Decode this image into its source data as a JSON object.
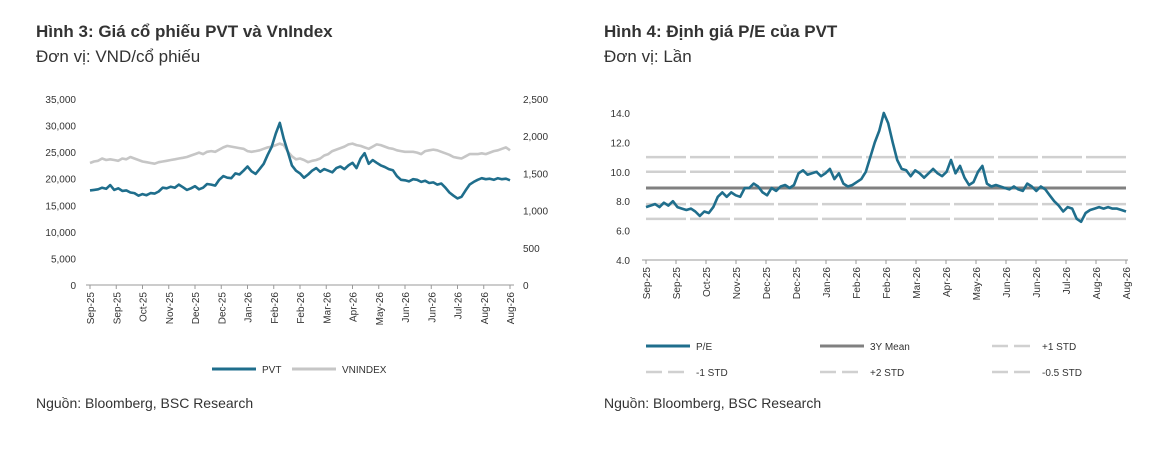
{
  "chart_data": [
    {
      "type": "line",
      "title": "Hình 3: Giá cổ phiếu PVT và VnIndex",
      "subtitle": "Đơn vị: VND/cổ phiếu",
      "source": "Nguồn: Bloomberg, BSC Research",
      "x_tick_labels": [
        "Sep-25",
        "Sep-25",
        "Oct-25",
        "Nov-25",
        "Dec-25",
        "Dec-25",
        "Jan-26",
        "Feb-26",
        "Feb-26",
        "Mar-26",
        "Apr-26",
        "May-26",
        "Jun-26",
        "Jun-26",
        "Jul-26",
        "Aug-26",
        "Aug-26"
      ],
      "y_left_ticks": [
        "35,000",
        "30,000",
        "25,000",
        "20,000",
        "15,000",
        "10,000",
        "5,000",
        "0"
      ],
      "y_right_ticks": [
        "2,500",
        "2,000",
        "1,500",
        "1,000",
        "500",
        "0"
      ],
      "ylim_left": [
        0,
        35000
      ],
      "ylim_right": [
        0,
        2500
      ],
      "legend_position": "bottom",
      "grid": false,
      "series": [
        {
          "name": "PVT",
          "axis": "left",
          "color": "#1f6e8c",
          "values": [
            17800,
            17900,
            18000,
            18300,
            18100,
            18800,
            17900,
            18200,
            17700,
            17800,
            17400,
            17300,
            16800,
            17100,
            16900,
            17300,
            17200,
            17600,
            18300,
            18200,
            18500,
            18300,
            18900,
            18400,
            17900,
            18200,
            18600,
            18000,
            18300,
            19000,
            18900,
            18700,
            19800,
            20500,
            20200,
            20100,
            21000,
            20800,
            21500,
            22300,
            21400,
            20900,
            21800,
            22800,
            24500,
            26000,
            28500,
            30500,
            27500,
            25000,
            22500,
            21500,
            21000,
            20200,
            20800,
            21500,
            22000,
            21300,
            21800,
            21500,
            21200,
            22000,
            22300,
            21800,
            22500,
            23000,
            22000,
            23800,
            24800,
            22800,
            23500,
            23000,
            22500,
            22200,
            21800,
            21600,
            20500,
            19800,
            19700,
            19500,
            19900,
            19800,
            19400,
            19600,
            19200,
            19300,
            18900,
            19100,
            18300,
            17400,
            16800,
            16300,
            16600,
            17800,
            18900,
            19400,
            19800,
            20100,
            19900,
            20000,
            19800,
            20100,
            19900,
            20000,
            19700
          ]
        },
        {
          "name": "VNINDEX",
          "axis": "right",
          "color": "#c6c6c6",
          "values": [
            1640,
            1660,
            1670,
            1700,
            1680,
            1690,
            1680,
            1670,
            1700,
            1690,
            1720,
            1700,
            1680,
            1660,
            1650,
            1640,
            1630,
            1650,
            1660,
            1670,
            1680,
            1690,
            1700,
            1710,
            1720,
            1740,
            1760,
            1780,
            1760,
            1790,
            1800,
            1790,
            1820,
            1850,
            1870,
            1860,
            1850,
            1840,
            1830,
            1800,
            1790,
            1800,
            1810,
            1830,
            1850,
            1860,
            1880,
            1900,
            1880,
            1790,
            1730,
            1690,
            1700,
            1680,
            1650,
            1670,
            1680,
            1700,
            1740,
            1760,
            1800,
            1820,
            1840,
            1860,
            1890,
            1900,
            1880,
            1870,
            1850,
            1830,
            1860,
            1890,
            1880,
            1860,
            1840,
            1830,
            1810,
            1800,
            1790,
            1790,
            1790,
            1780,
            1760,
            1800,
            1810,
            1820,
            1810,
            1790,
            1770,
            1750,
            1720,
            1710,
            1700,
            1730,
            1760,
            1760,
            1760,
            1770,
            1760,
            1780,
            1800,
            1810,
            1830,
            1850,
            1810
          ]
        }
      ]
    },
    {
      "type": "line",
      "title": "Hình 4: Định giá P/E của PVT",
      "subtitle": "Đơn vị: Lần",
      "source": "Nguồn: Bloomberg, BSC Research",
      "x_tick_labels": [
        "Sep-25",
        "Sep-25",
        "Oct-25",
        "Nov-25",
        "Dec-25",
        "Dec-25",
        "Jan-26",
        "Feb-26",
        "Feb-26",
        "Mar-26",
        "Apr-26",
        "May-26",
        "Jun-26",
        "Jun-26",
        "Jul-26",
        "Aug-26",
        "Aug-26"
      ],
      "y_ticks": [
        "14.0",
        "12.0",
        "10.0",
        "8.0",
        "6.0",
        "4.0"
      ],
      "ylim": [
        4,
        14
      ],
      "legend_position": "bottom",
      "grid": false,
      "reference_lines": [
        {
          "name": "3Y Mean",
          "value": 8.9,
          "color": "#808080",
          "style": "solid"
        },
        {
          "name": "+1 STD",
          "value": 10.0,
          "color": "#d0d0d0",
          "style": "dash"
        },
        {
          "name": "-1 STD",
          "value": 7.8,
          "color": "#d0d0d0",
          "style": "dash"
        },
        {
          "name": "+2 STD",
          "value": 11.0,
          "color": "#d0d0d0",
          "style": "dash"
        },
        {
          "name": "-0.5 STD",
          "value": 6.8,
          "color": "#d0d0d0",
          "style": "dash"
        }
      ],
      "series": [
        {
          "name": "P/E",
          "color": "#1f6e8c",
          "values": [
            7.6,
            7.7,
            7.8,
            7.6,
            7.9,
            7.7,
            8.0,
            7.6,
            7.5,
            7.4,
            7.5,
            7.3,
            7.0,
            7.3,
            7.2,
            7.6,
            8.3,
            8.6,
            8.3,
            8.6,
            8.4,
            8.3,
            8.9,
            8.9,
            9.2,
            9.0,
            8.6,
            8.4,
            8.9,
            8.7,
            9.0,
            9.1,
            8.9,
            9.1,
            9.9,
            10.1,
            9.8,
            9.9,
            10.0,
            9.7,
            9.9,
            10.2,
            9.5,
            9.9,
            9.2,
            9.0,
            9.1,
            9.3,
            9.5,
            10.0,
            11.0,
            12.0,
            12.8,
            14.0,
            13.3,
            12.0,
            10.8,
            10.2,
            10.1,
            9.7,
            10.1,
            9.9,
            9.6,
            9.9,
            10.2,
            9.9,
            9.7,
            10.0,
            10.8,
            9.9,
            10.4,
            9.6,
            9.1,
            9.3,
            10.0,
            10.4,
            9.2,
            9.0,
            9.1,
            9.0,
            8.9,
            8.8,
            9.0,
            8.8,
            8.7,
            9.2,
            9.0,
            8.7,
            9.0,
            8.8,
            8.4,
            8.0,
            7.7,
            7.3,
            7.6,
            7.5,
            6.8,
            6.6,
            7.2,
            7.4,
            7.5,
            7.6,
            7.5,
            7.6,
            7.5,
            7.5,
            7.4,
            7.3
          ]
        }
      ]
    }
  ],
  "legend_left": [
    {
      "label": "PVT",
      "color": "#1f6e8c",
      "style": "solid"
    },
    {
      "label": "VNINDEX",
      "color": "#c6c6c6",
      "style": "solid"
    }
  ],
  "legend_right": [
    {
      "label": "P/E",
      "color": "#1f6e8c",
      "style": "solid"
    },
    {
      "label": "3Y Mean",
      "color": "#808080",
      "style": "solid"
    },
    {
      "label": "+1 STD",
      "color": "#d0d0d0",
      "style": "dash"
    },
    {
      "label": "-1 STD",
      "color": "#d0d0d0",
      "style": "dash"
    },
    {
      "label": "+2 STD",
      "color": "#d0d0d0",
      "style": "dash"
    },
    {
      "label": "-0.5 STD",
      "color": "#d0d0d0",
      "style": "dash"
    }
  ]
}
